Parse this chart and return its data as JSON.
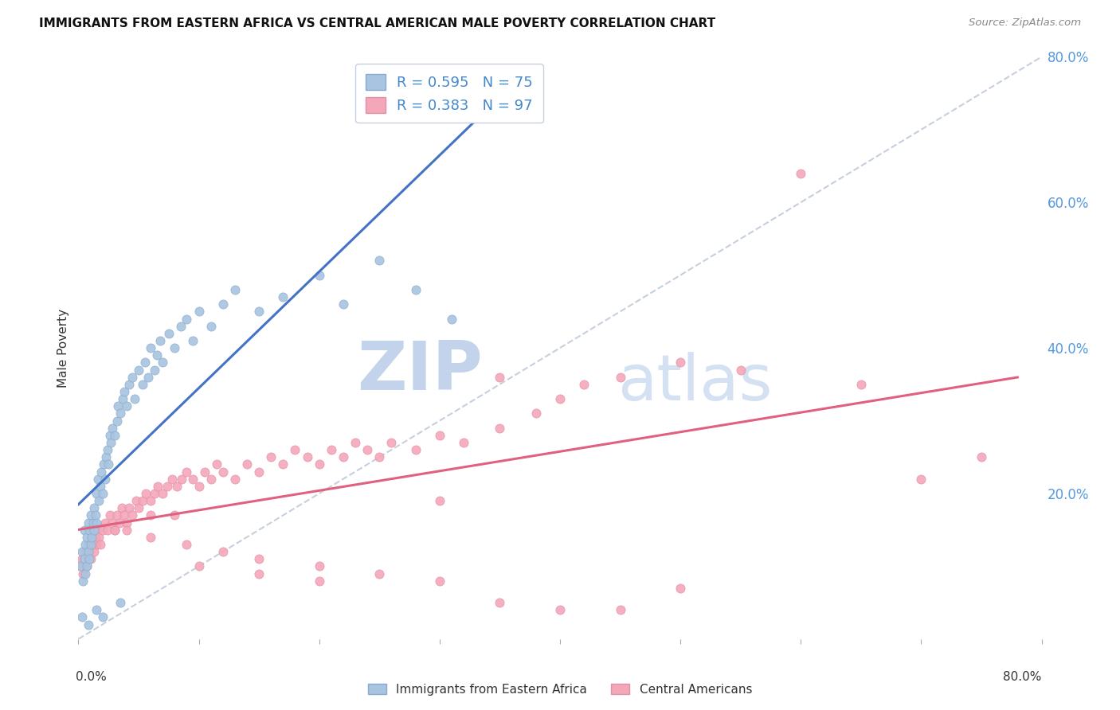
{
  "title": "IMMIGRANTS FROM EASTERN AFRICA VS CENTRAL AMERICAN MALE POVERTY CORRELATION CHART",
  "source": "Source: ZipAtlas.com",
  "ylabel": "Male Poverty",
  "right_yticks": [
    "20.0%",
    "40.0%",
    "60.0%",
    "80.0%"
  ],
  "right_ytick_vals": [
    0.2,
    0.4,
    0.6,
    0.8
  ],
  "xlim": [
    0.0,
    0.8
  ],
  "ylim": [
    0.0,
    0.8
  ],
  "blue_R": 0.595,
  "blue_N": 75,
  "pink_R": 0.383,
  "pink_N": 97,
  "blue_color": "#a8c4e0",
  "pink_color": "#f4a7b9",
  "blue_line_color": "#4472c4",
  "pink_line_color": "#e06080",
  "dashed_line_color": "#b8c4d4",
  "watermark_zip": "ZIP",
  "watermark_atlas": "atlas",
  "watermark_color": "#d0e0f0",
  "legend_blue_label": "Immigrants from Eastern Africa",
  "legend_pink_label": "Central Americans",
  "blue_scatter_x": [
    0.002,
    0.003,
    0.004,
    0.005,
    0.005,
    0.006,
    0.006,
    0.007,
    0.007,
    0.008,
    0.008,
    0.009,
    0.009,
    0.01,
    0.01,
    0.011,
    0.012,
    0.013,
    0.013,
    0.014,
    0.015,
    0.015,
    0.016,
    0.017,
    0.018,
    0.019,
    0.02,
    0.021,
    0.022,
    0.023,
    0.024,
    0.025,
    0.026,
    0.027,
    0.028,
    0.03,
    0.032,
    0.033,
    0.035,
    0.037,
    0.038,
    0.04,
    0.042,
    0.045,
    0.047,
    0.05,
    0.053,
    0.055,
    0.058,
    0.06,
    0.063,
    0.065,
    0.068,
    0.07,
    0.075,
    0.08,
    0.085,
    0.09,
    0.095,
    0.1,
    0.11,
    0.12,
    0.13,
    0.15,
    0.17,
    0.2,
    0.22,
    0.25,
    0.28,
    0.31,
    0.003,
    0.008,
    0.015,
    0.02,
    0.035
  ],
  "blue_scatter_y": [
    0.1,
    0.12,
    0.08,
    0.11,
    0.15,
    0.09,
    0.13,
    0.1,
    0.14,
    0.12,
    0.16,
    0.11,
    0.15,
    0.13,
    0.17,
    0.14,
    0.16,
    0.15,
    0.18,
    0.17,
    0.2,
    0.16,
    0.22,
    0.19,
    0.21,
    0.23,
    0.2,
    0.24,
    0.22,
    0.25,
    0.26,
    0.24,
    0.28,
    0.27,
    0.29,
    0.28,
    0.3,
    0.32,
    0.31,
    0.33,
    0.34,
    0.32,
    0.35,
    0.36,
    0.33,
    0.37,
    0.35,
    0.38,
    0.36,
    0.4,
    0.37,
    0.39,
    0.41,
    0.38,
    0.42,
    0.4,
    0.43,
    0.44,
    0.41,
    0.45,
    0.43,
    0.46,
    0.48,
    0.45,
    0.47,
    0.5,
    0.46,
    0.52,
    0.48,
    0.44,
    0.03,
    0.02,
    0.04,
    0.03,
    0.05
  ],
  "pink_scatter_x": [
    0.002,
    0.003,
    0.004,
    0.005,
    0.006,
    0.007,
    0.008,
    0.009,
    0.01,
    0.011,
    0.012,
    0.013,
    0.014,
    0.015,
    0.016,
    0.017,
    0.018,
    0.02,
    0.022,
    0.024,
    0.026,
    0.028,
    0.03,
    0.032,
    0.034,
    0.036,
    0.038,
    0.04,
    0.042,
    0.045,
    0.048,
    0.05,
    0.053,
    0.056,
    0.06,
    0.063,
    0.066,
    0.07,
    0.074,
    0.078,
    0.082,
    0.086,
    0.09,
    0.095,
    0.1,
    0.105,
    0.11,
    0.115,
    0.12,
    0.13,
    0.14,
    0.15,
    0.16,
    0.17,
    0.18,
    0.19,
    0.2,
    0.21,
    0.22,
    0.23,
    0.24,
    0.25,
    0.26,
    0.28,
    0.3,
    0.32,
    0.35,
    0.38,
    0.4,
    0.42,
    0.45,
    0.5,
    0.55,
    0.6,
    0.65,
    0.7,
    0.75,
    0.03,
    0.06,
    0.09,
    0.12,
    0.15,
    0.2,
    0.25,
    0.3,
    0.35,
    0.4,
    0.45,
    0.5,
    0.35,
    0.3,
    0.2,
    0.15,
    0.1,
    0.08,
    0.06,
    0.04
  ],
  "pink_scatter_y": [
    0.1,
    0.11,
    0.09,
    0.12,
    0.11,
    0.1,
    0.13,
    0.12,
    0.11,
    0.14,
    0.13,
    0.12,
    0.14,
    0.13,
    0.15,
    0.14,
    0.13,
    0.15,
    0.16,
    0.15,
    0.17,
    0.16,
    0.15,
    0.17,
    0.16,
    0.18,
    0.17,
    0.16,
    0.18,
    0.17,
    0.19,
    0.18,
    0.19,
    0.2,
    0.19,
    0.2,
    0.21,
    0.2,
    0.21,
    0.22,
    0.21,
    0.22,
    0.23,
    0.22,
    0.21,
    0.23,
    0.22,
    0.24,
    0.23,
    0.22,
    0.24,
    0.23,
    0.25,
    0.24,
    0.26,
    0.25,
    0.24,
    0.26,
    0.25,
    0.27,
    0.26,
    0.25,
    0.27,
    0.26,
    0.28,
    0.27,
    0.29,
    0.31,
    0.33,
    0.35,
    0.36,
    0.38,
    0.37,
    0.64,
    0.35,
    0.22,
    0.25,
    0.15,
    0.14,
    0.13,
    0.12,
    0.11,
    0.1,
    0.09,
    0.08,
    0.05,
    0.04,
    0.04,
    0.07,
    0.36,
    0.19,
    0.08,
    0.09,
    0.1,
    0.17,
    0.17,
    0.15
  ]
}
